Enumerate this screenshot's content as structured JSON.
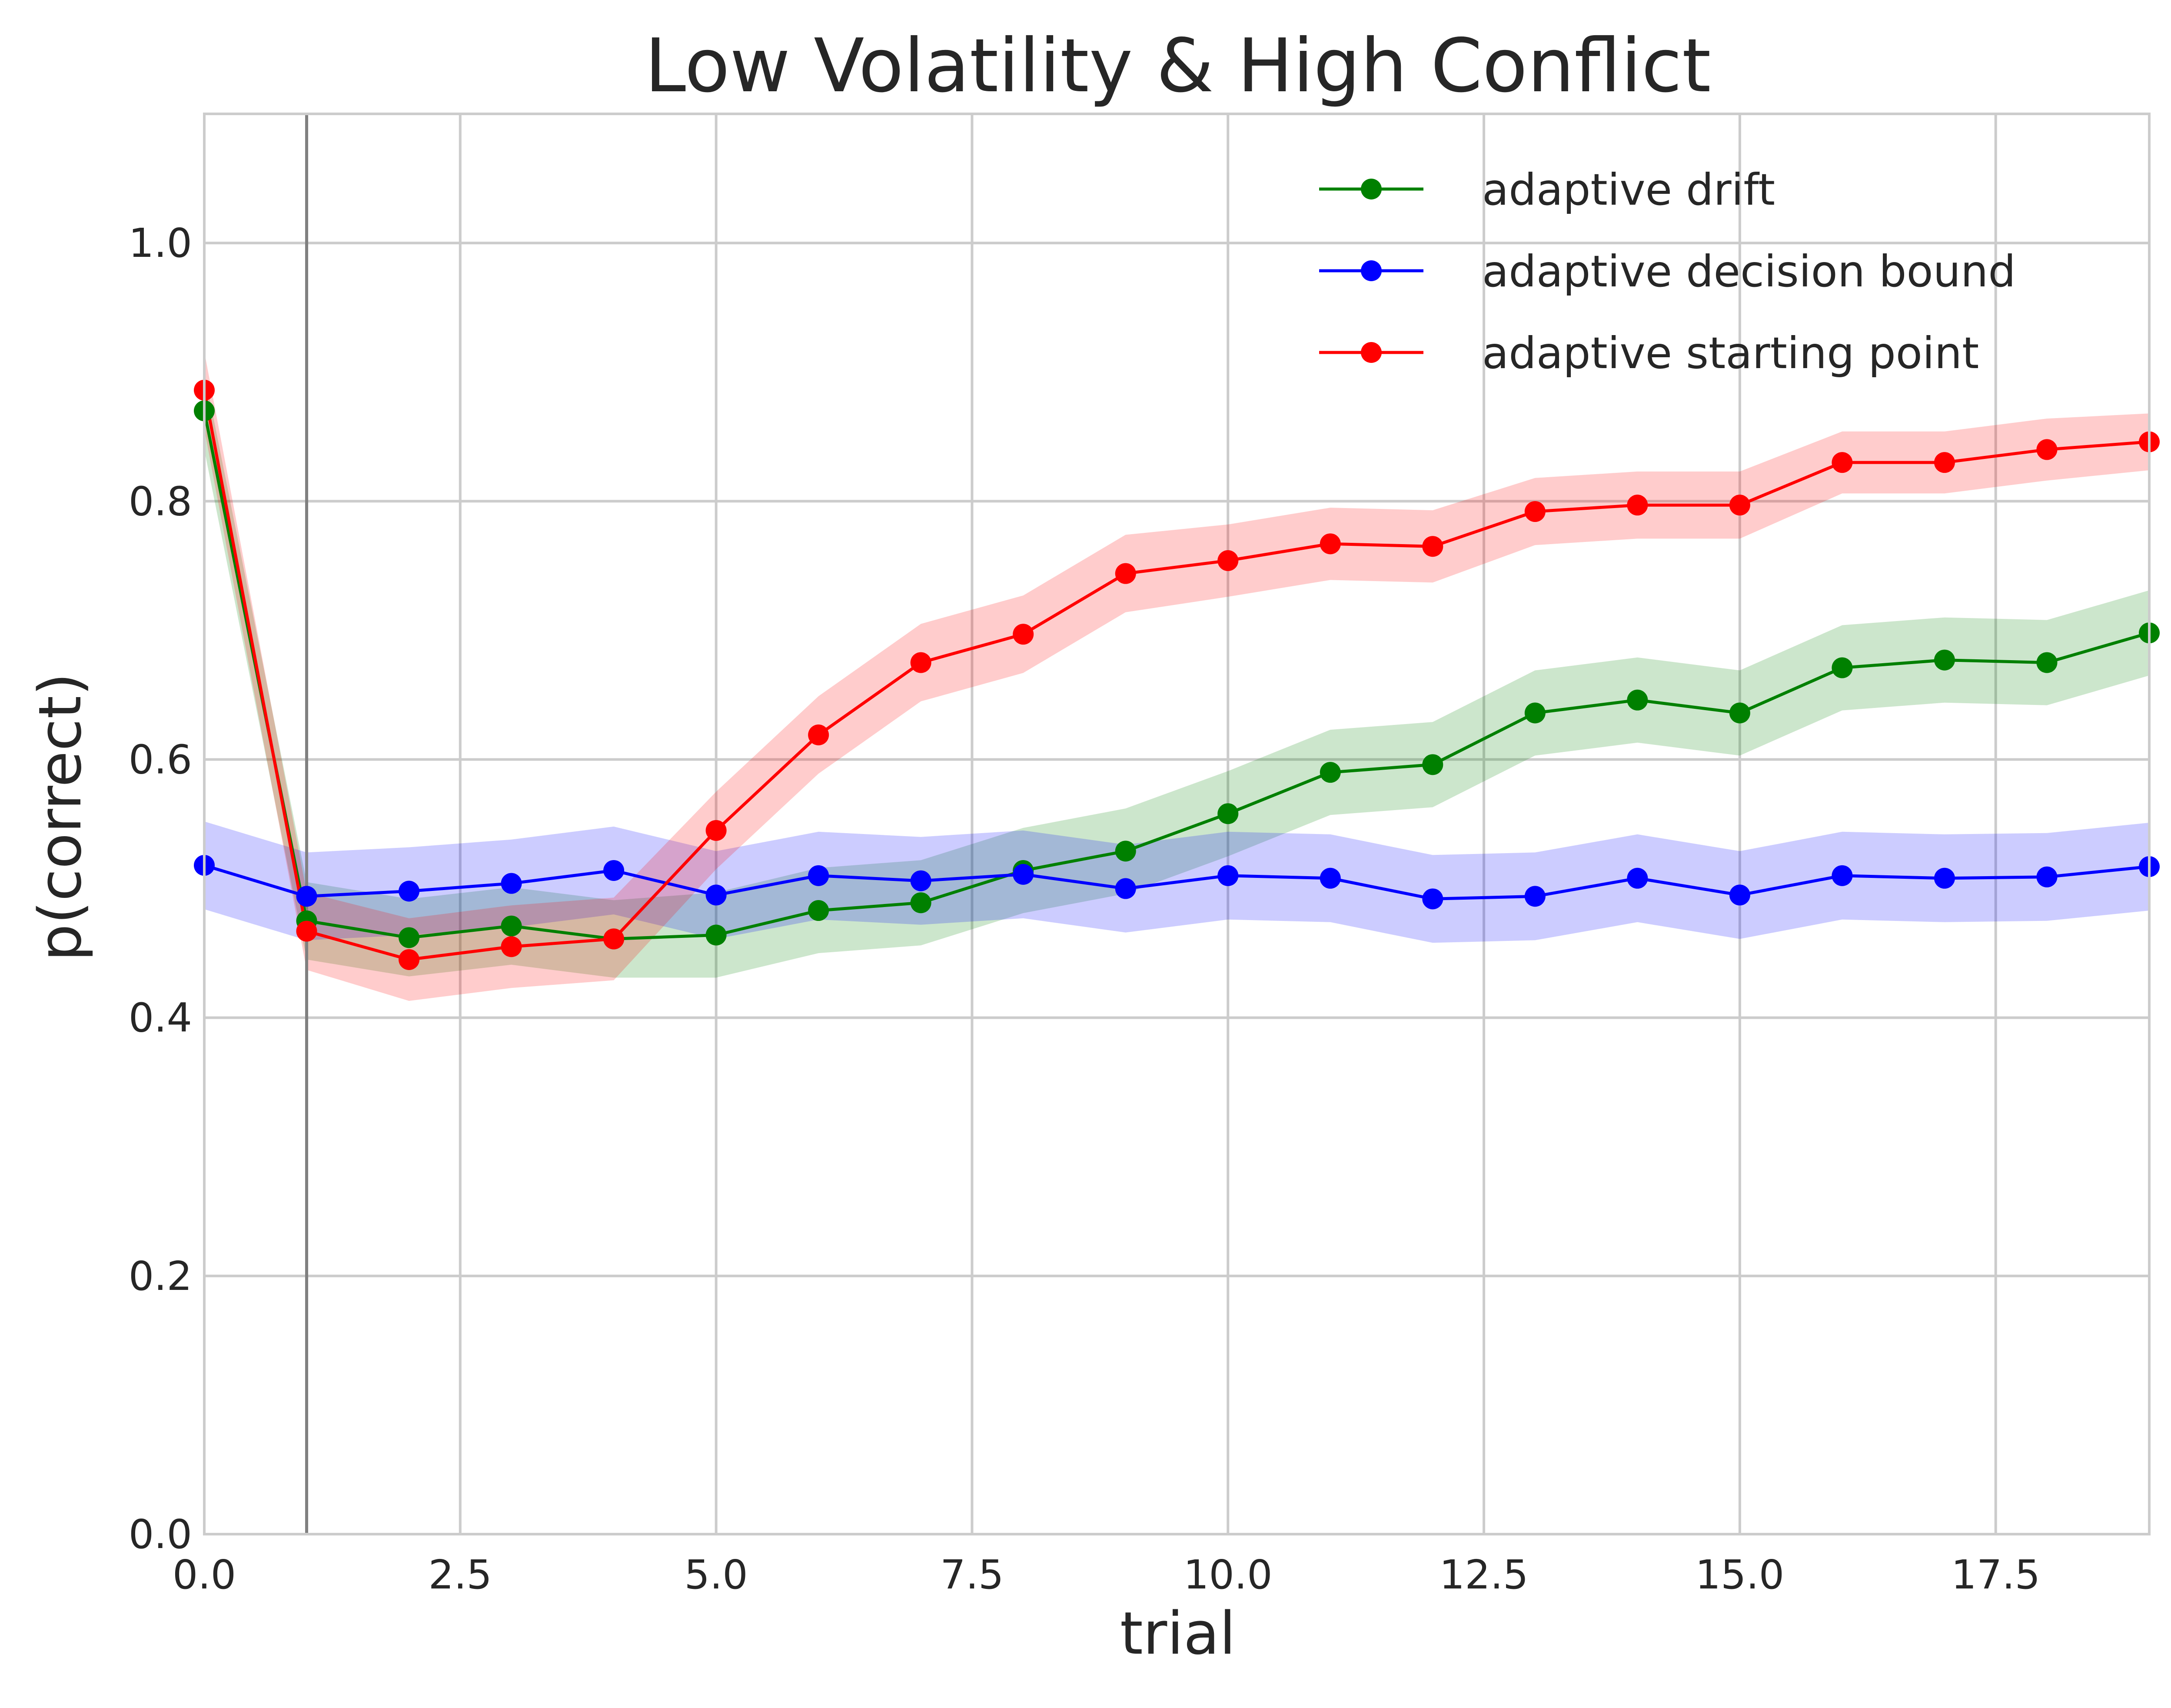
{
  "chart_data": {
    "type": "line",
    "title": "Low Volatility & High Conflict",
    "xlabel": "trial",
    "ylabel": "p(correct)",
    "xlim": [
      0,
      19
    ],
    "ylim": [
      0,
      1.1
    ],
    "xticks": [
      0.0,
      2.5,
      5.0,
      7.5,
      10.0,
      12.5,
      15.0,
      17.5
    ],
    "xtick_labels": [
      "0.0",
      "2.5",
      "5.0",
      "7.5",
      "10.0",
      "12.5",
      "15.0",
      "17.5"
    ],
    "yticks": [
      0.0,
      0.2,
      0.4,
      0.6,
      0.8,
      1.0
    ],
    "ytick_labels": [
      "0.0",
      "0.2",
      "0.4",
      "0.6",
      "0.8",
      "1.0"
    ],
    "grid": true,
    "legend": "top-right",
    "vline_x": 1,
    "x": [
      0,
      1,
      2,
      3,
      4,
      5,
      6,
      7,
      8,
      9,
      10,
      11,
      12,
      13,
      14,
      15,
      16,
      17,
      18,
      19
    ],
    "series": [
      {
        "name": "adaptive drift",
        "color": "#008000",
        "band_color": "#008000",
        "values": [
          0.87,
          0.475,
          0.462,
          0.471,
          0.461,
          0.464,
          0.483,
          0.489,
          0.514,
          0.529,
          0.558,
          0.59,
          0.596,
          0.636,
          0.646,
          0.636,
          0.671,
          0.677,
          0.675,
          0.698
        ],
        "band": [
          0.03,
          0.03,
          0.03,
          0.03,
          0.03,
          0.033,
          0.033,
          0.033,
          0.033,
          0.033,
          0.033,
          0.033,
          0.033,
          0.033,
          0.033,
          0.033,
          0.033,
          0.033,
          0.033,
          0.033
        ]
      },
      {
        "name": "adaptive decision bound",
        "color": "#0000ff",
        "band_color": "#0000ff",
        "values": [
          0.518,
          0.494,
          0.498,
          0.504,
          0.514,
          0.495,
          0.51,
          0.506,
          0.511,
          0.5,
          0.51,
          0.508,
          0.492,
          0.494,
          0.508,
          0.495,
          0.51,
          0.508,
          0.509,
          0.517
        ],
        "band": [
          0.034,
          0.034,
          0.034,
          0.034,
          0.034,
          0.034,
          0.034,
          0.034,
          0.034,
          0.034,
          0.034,
          0.034,
          0.034,
          0.034,
          0.034,
          0.034,
          0.034,
          0.034,
          0.034,
          0.034
        ]
      },
      {
        "name": "adaptive starting point",
        "color": "#ff0000",
        "band_color": "#ff0000",
        "values": [
          0.886,
          0.467,
          0.445,
          0.455,
          0.461,
          0.545,
          0.619,
          0.675,
          0.697,
          0.744,
          0.754,
          0.767,
          0.765,
          0.792,
          0.797,
          0.797,
          0.83,
          0.83,
          0.84,
          0.846
        ],
        "band": [
          0.03,
          0.03,
          0.032,
          0.032,
          0.032,
          0.03,
          0.03,
          0.03,
          0.03,
          0.03,
          0.028,
          0.028,
          0.028,
          0.026,
          0.026,
          0.026,
          0.024,
          0.024,
          0.024,
          0.022
        ]
      }
    ]
  }
}
